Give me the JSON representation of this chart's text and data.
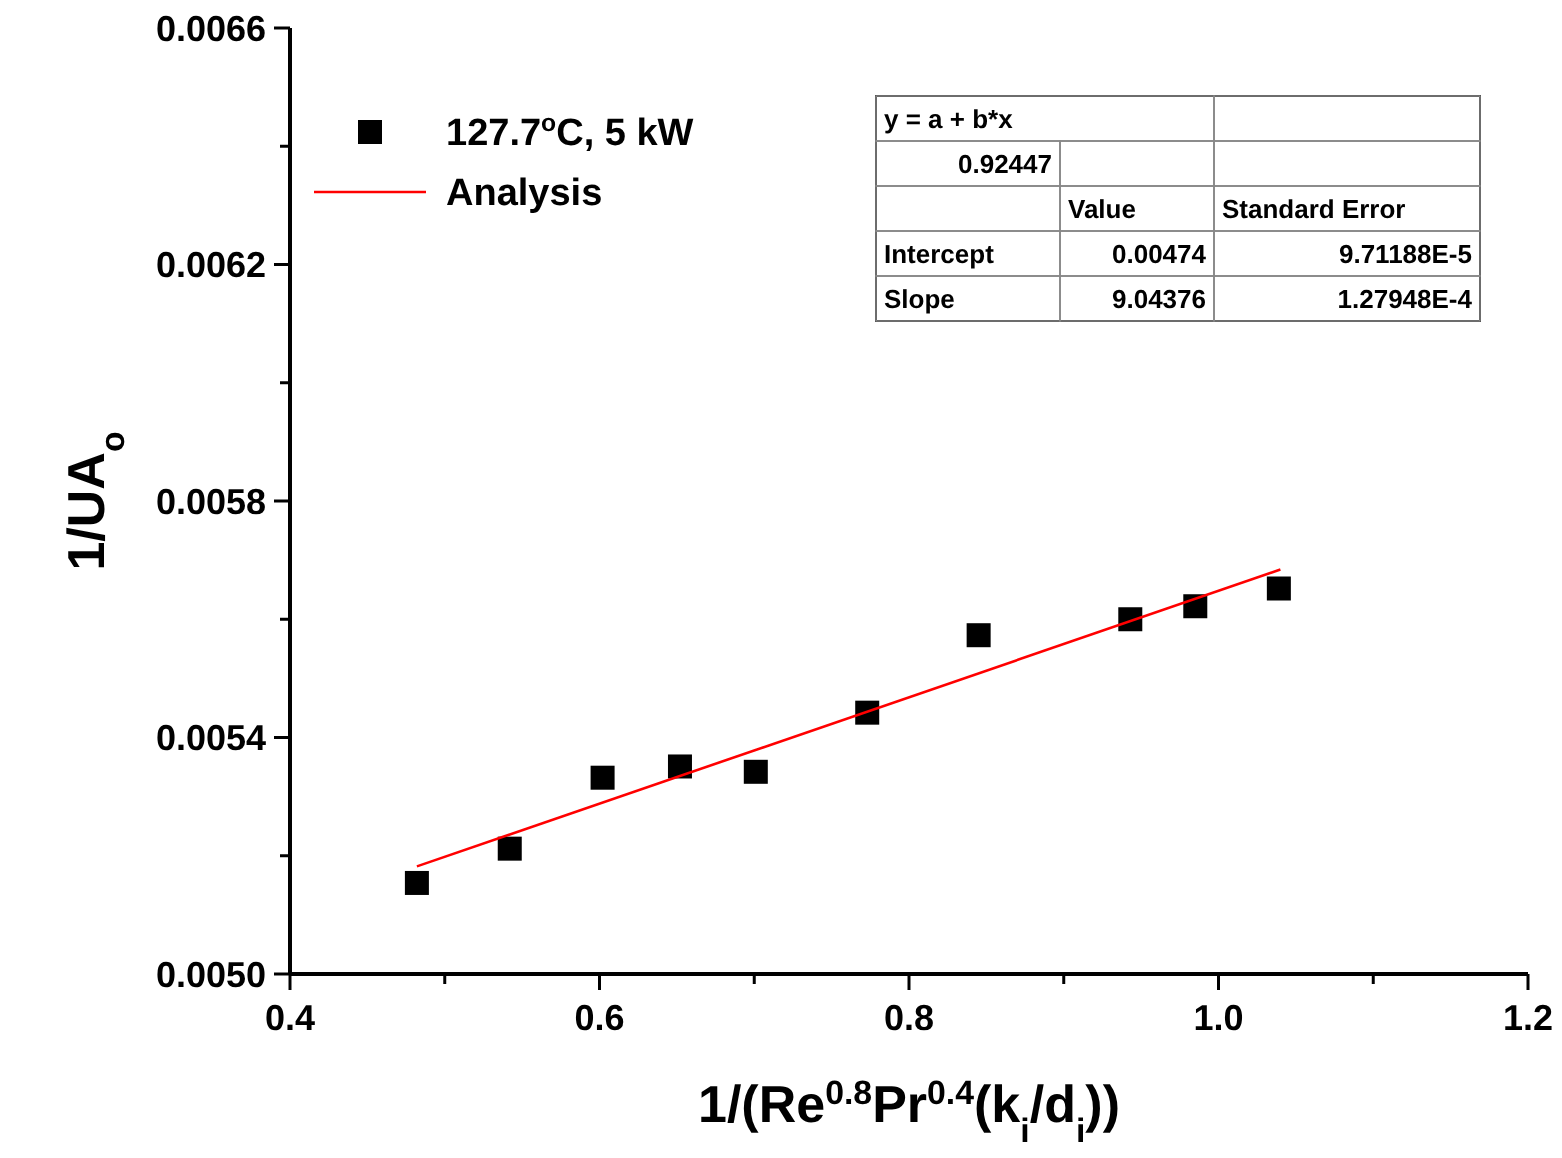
{
  "chart_data": {
    "type": "scatter",
    "xlabel": "1/(Re$^{0.8}$Pr$^{0.4}$(k$_{i}$/d$_{i}$))",
    "ylabel": "1/UA$_{o}$",
    "series": [
      {
        "name": "127.7$^{o}$C, 5 kW",
        "color": "#000000",
        "marker": "square",
        "x": [
          0.482,
          0.542,
          0.602,
          0.652,
          0.701,
          0.773,
          0.845,
          0.943,
          0.985,
          1.039
        ],
        "values": [
          0.005154,
          0.005212,
          0.005332,
          0.005351,
          0.005342,
          0.005442,
          0.005573,
          0.0056,
          0.005622,
          0.005652
        ]
      },
      {
        "name": "Analysis",
        "type": "line",
        "color": "#ff0000",
        "marker": "none",
        "line_style": "solid",
        "x": [
          0.482,
          1.04
        ],
        "values": [
          0.005182,
          0.005684
        ]
      }
    ],
    "xlim": [
      0.4,
      1.2
    ],
    "xticks": [
      {
        "value": 0.4,
        "label": "0.4"
      },
      {
        "value": 0.5,
        "label": null
      },
      {
        "value": 0.6,
        "label": "0.6"
      },
      {
        "value": 0.7,
        "label": null
      },
      {
        "value": 0.8,
        "label": "0.8"
      },
      {
        "value": 0.9,
        "label": null
      },
      {
        "value": 1.0,
        "label": "1.0"
      },
      {
        "value": 1.1,
        "label": null
      },
      {
        "value": 1.2,
        "label": "1.2"
      }
    ],
    "ylim": [
      0.005,
      0.0066
    ],
    "yticks": [
      {
        "value": 0.005,
        "label": "0.0050"
      },
      {
        "value": 0.0052,
        "label": null
      },
      {
        "value": 0.0054,
        "label": "0.0054"
      },
      {
        "value": 0.0056,
        "label": null
      },
      {
        "value": 0.0058,
        "label": "0.0058"
      },
      {
        "value": 0.006,
        "label": null
      },
      {
        "value": 0.0062,
        "label": "0.0062"
      },
      {
        "value": 0.0064,
        "label": null
      },
      {
        "value": 0.0066,
        "label": "0.0066"
      }
    ],
    "grid": false,
    "legend": "top left",
    "annotations": [
      "y = a + b*x",
      "0.92447",
      "Value",
      "Standard Error",
      "Intercept",
      "0.00474",
      "9.71188E-5",
      "Slope",
      "9.04376",
      "1.27948E-4"
    ]
  }
}
